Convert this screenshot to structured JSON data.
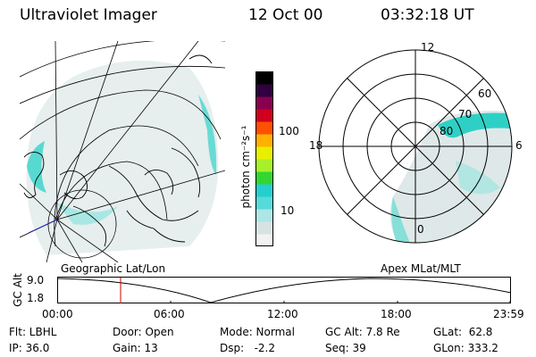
{
  "header": {
    "instrument": "Ultraviolet Imager",
    "date": "12 Oct 00",
    "time": "03:32:18 UT"
  },
  "left_map": {
    "caption": "Geographic Lat/Lon"
  },
  "right_map": {
    "caption": "Apex MLat/MLT",
    "mlt_labels": {
      "top": "12",
      "left": "18",
      "right": "6",
      "bottom": "0"
    },
    "lat_labels": [
      "60",
      "70",
      "80"
    ]
  },
  "colorbar": {
    "unit_label": "photon cm⁻²s⁻¹",
    "ticks": [
      "100",
      "10"
    ],
    "colors": [
      "#f2f2f2",
      "#d8e2e2",
      "#aee6e6",
      "#56dada",
      "#24cfcf",
      "#33d633",
      "#a8f02a",
      "#e8f000",
      "#ffb000",
      "#ff5000",
      "#d0001e",
      "#8a0050",
      "#300040",
      "#000000"
    ]
  },
  "timeline": {
    "axis_label": "GC Alt",
    "y_ticks": [
      "9.0",
      "1.8"
    ],
    "x_ticks": [
      "00:00",
      "06:00",
      "12:00",
      "18:00",
      "23:59"
    ],
    "marker_color": "#cc0000"
  },
  "info": {
    "flt": "Flt: LBHL",
    "ip": "IP: 36.0",
    "door": "Door: Open",
    "gain": "Gain: 13",
    "mode": "Mode: Normal",
    "dsp": "Dsp:   -2.2",
    "gc_alt": "GC Alt: 7.8 Re",
    "seq": "Seq: 39",
    "glat": "GLat:  62.8",
    "glon": "GLon: 333.2"
  }
}
